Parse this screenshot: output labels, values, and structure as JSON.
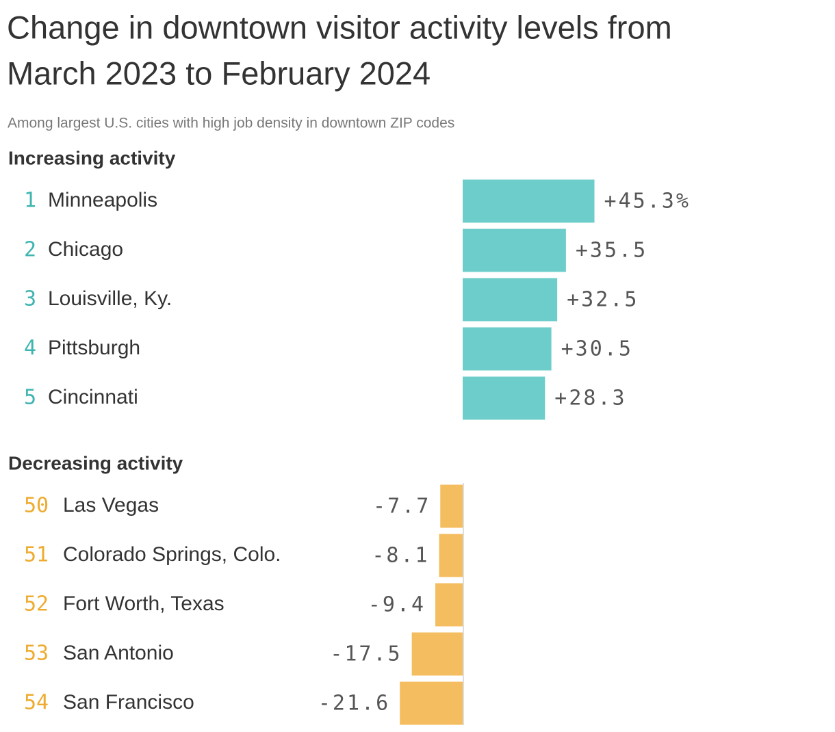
{
  "title": "Change in downtown visitor activity levels from March 2023 to February 2024",
  "title_lines": [
    "Change in downtown visitor activity levels from",
    "March 2023 to February 2024"
  ],
  "subtitle": "Among largest U.S. cities with high job density in downtown ZIP codes",
  "chart_data": [
    {
      "type": "bar",
      "heading": "Increasing activity",
      "color": "#6dcdca",
      "rank_color": "#3fb5b1",
      "ranks": [
        1,
        2,
        3,
        4,
        5
      ],
      "categories": [
        "Minneapolis",
        "Chicago",
        "Louisville, Ky.",
        "Pittsburgh",
        "Cincinnati"
      ],
      "values": [
        45.3,
        35.5,
        32.5,
        30.5,
        28.3
      ],
      "value_labels": [
        "+45.3%",
        "+35.5",
        "+32.5",
        "+30.5",
        "+28.3"
      ]
    },
    {
      "type": "bar",
      "heading": "Decreasing activity",
      "color": "#f4bd5f",
      "rank_color": "#eeab2f",
      "ranks": [
        50,
        51,
        52,
        53,
        54
      ],
      "categories": [
        "Las Vegas",
        "Colorado Springs, Colo.",
        "Fort Worth, Texas",
        "San Antonio",
        "San Francisco"
      ],
      "values": [
        -7.7,
        -8.1,
        -9.4,
        -17.5,
        -21.6
      ],
      "value_labels": [
        "-7.7",
        "-8.1",
        "-9.4",
        "-17.5",
        "-21.6"
      ]
    }
  ]
}
